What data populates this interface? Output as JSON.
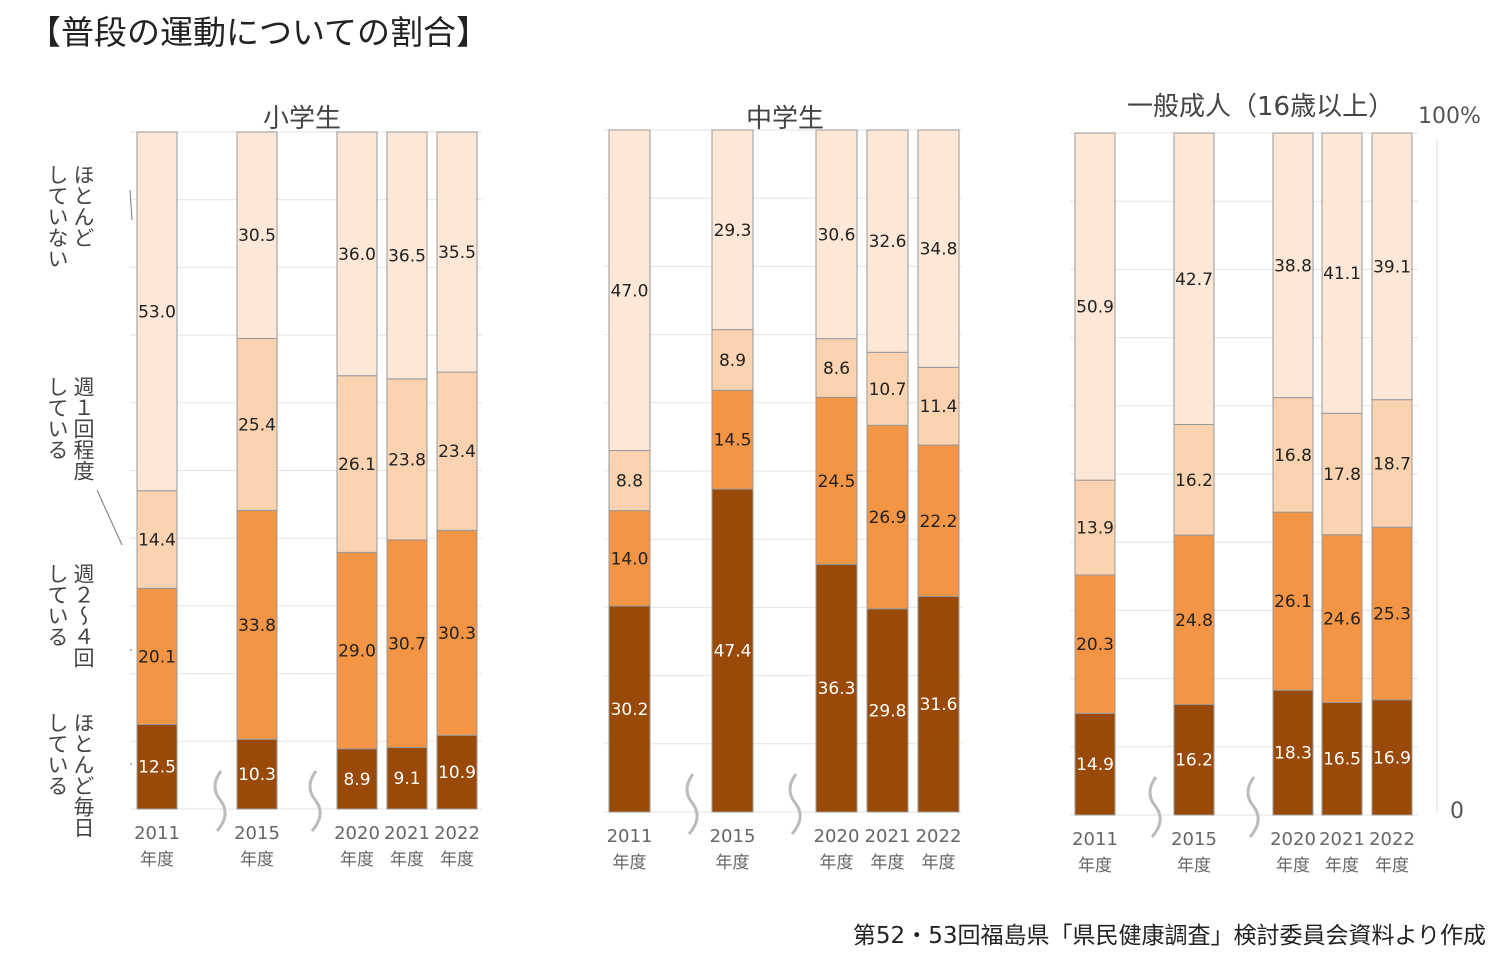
{
  "title": "【普段の運動についての割合】",
  "source": "第52・53回福島県「県民健康調査」検討委員会資料より作成",
  "categories": [
    {
      "lines": [
        "ほとんど毎日",
        "している"
      ]
    },
    {
      "lines": [
        "週２～４回",
        "している"
      ]
    },
    {
      "lines": [
        "週１回程度",
        "している"
      ]
    },
    {
      "lines": [
        "ほとんど",
        "していない"
      ]
    }
  ],
  "axis": {
    "top": "100%",
    "bottom": "0"
  },
  "colors": {
    "daily": "#9a4a08",
    "two_to_four": "#f49546",
    "once": "#fbd3b0",
    "none": "#fde8d8",
    "border": "#999999"
  },
  "chart_data": [
    {
      "type": "bar",
      "stacked": true,
      "title": "小学生",
      "ylim": [
        0,
        100
      ],
      "categories": [
        "2011",
        "2015",
        "2020",
        "2021",
        "2022"
      ],
      "category_suffix": "年度",
      "series": [
        {
          "name": "ほとんど毎日している",
          "values": [
            12.5,
            10.3,
            8.9,
            9.1,
            10.9
          ]
        },
        {
          "name": "週２～４回している",
          "values": [
            20.1,
            33.8,
            29.0,
            30.7,
            30.3
          ]
        },
        {
          "name": "週１回程度している",
          "values": [
            14.4,
            25.4,
            26.1,
            23.8,
            23.4
          ]
        },
        {
          "name": "ほとんどしていない",
          "values": [
            53.0,
            30.5,
            36.0,
            36.5,
            35.5
          ]
        }
      ]
    },
    {
      "type": "bar",
      "stacked": true,
      "title": "中学生",
      "ylim": [
        0,
        100
      ],
      "categories": [
        "2011",
        "2015",
        "2020",
        "2021",
        "2022"
      ],
      "category_suffix": "年度",
      "series": [
        {
          "name": "ほとんど毎日している",
          "values": [
            30.2,
            47.4,
            36.3,
            29.8,
            31.6
          ]
        },
        {
          "name": "週２～４回している",
          "values": [
            14.0,
            14.5,
            24.5,
            26.9,
            22.2
          ]
        },
        {
          "name": "週１回程度している",
          "values": [
            8.8,
            8.9,
            8.6,
            10.7,
            11.4
          ]
        },
        {
          "name": "ほとんどしていない",
          "values": [
            47.0,
            29.3,
            30.6,
            32.6,
            34.8
          ]
        }
      ]
    },
    {
      "type": "bar",
      "stacked": true,
      "title": "一般成人（16歳以上）",
      "ylim": [
        0,
        100
      ],
      "categories": [
        "2011",
        "2015",
        "2020",
        "2021",
        "2022"
      ],
      "category_suffix": "年度",
      "series": [
        {
          "name": "ほとんど毎日している",
          "values": [
            14.9,
            16.2,
            18.3,
            16.5,
            16.9
          ]
        },
        {
          "name": "週２～４回している",
          "values": [
            20.3,
            24.8,
            26.1,
            24.6,
            25.3
          ]
        },
        {
          "name": "週１回程度している",
          "values": [
            13.9,
            16.2,
            16.8,
            17.8,
            18.7
          ]
        },
        {
          "name": "ほとんどしていない",
          "values": [
            50.9,
            42.7,
            38.8,
            41.1,
            39.1
          ]
        }
      ]
    }
  ]
}
